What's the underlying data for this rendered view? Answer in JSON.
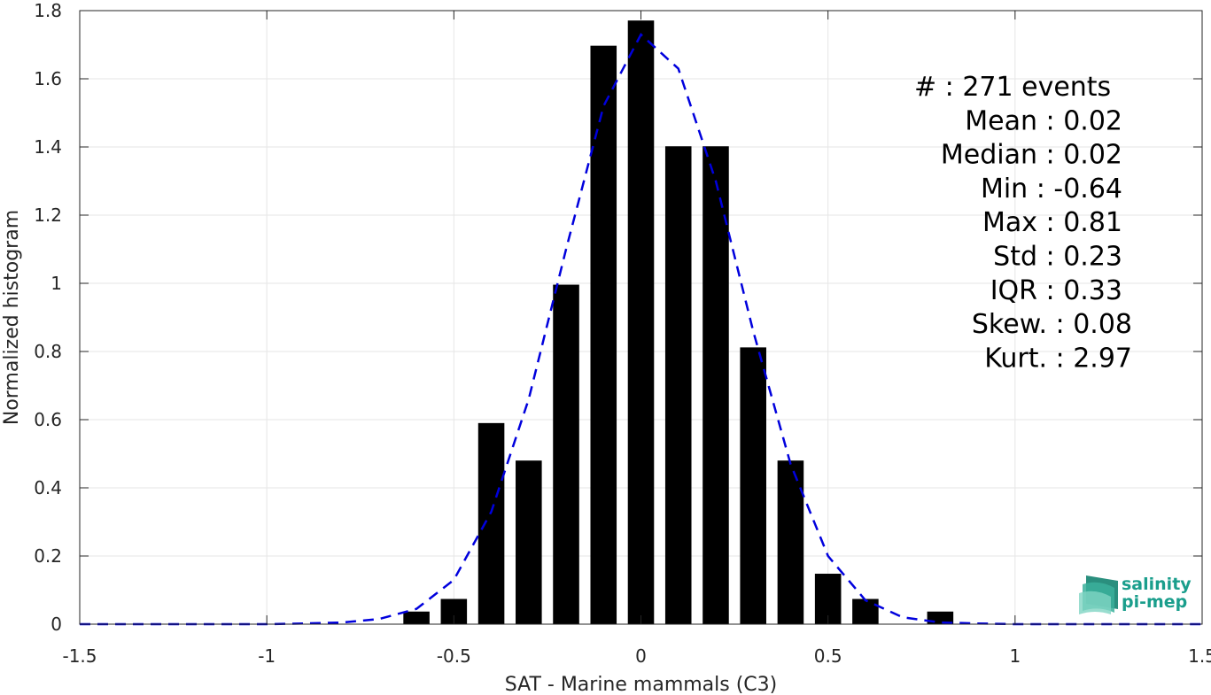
{
  "chart_data": {
    "type": "bar",
    "xlabel": "SAT - Marine mammals (C3)",
    "ylabel": "Normalized histogram",
    "xlim": [
      -1.5,
      1.5
    ],
    "ylim": [
      0,
      1.8
    ],
    "grid": true,
    "x_ticks": [
      "-1.5",
      "-1",
      "-0.5",
      "0",
      "0.5",
      "1",
      "1.5"
    ],
    "x_tick_values": [
      -1.5,
      -1,
      -0.5,
      0,
      0.5,
      1,
      1.5
    ],
    "y_ticks": [
      "0",
      "0.2",
      "0.4",
      "0.6",
      "0.8",
      "1",
      "1.2",
      "1.4",
      "1.6",
      "1.8"
    ],
    "y_tick_values": [
      0,
      0.2,
      0.4,
      0.6,
      0.8,
      1.0,
      1.2,
      1.4,
      1.6,
      1.8
    ],
    "bar_width": 0.07,
    "bars": {
      "color": "#000000",
      "x": [
        -0.6,
        -0.5,
        -0.4,
        -0.3,
        -0.2,
        -0.1,
        0.0,
        0.1,
        0.2,
        0.3,
        0.4,
        0.5,
        0.6,
        0.8
      ],
      "values": [
        0.037,
        0.074,
        0.59,
        0.48,
        0.996,
        1.697,
        1.771,
        1.402,
        1.402,
        0.812,
        0.48,
        0.148,
        0.074,
        0.037
      ]
    },
    "fit_curve": {
      "color": "#0000dd",
      "style": "dashed",
      "x": [
        -1.5,
        -1.4,
        -1.3,
        -1.2,
        -1.1,
        -1.0,
        -0.9,
        -0.8,
        -0.7,
        -0.6,
        -0.5,
        -0.4,
        -0.3,
        -0.2,
        -0.1,
        0.0,
        0.1,
        0.2,
        0.3,
        0.4,
        0.5,
        0.6,
        0.7,
        0.8,
        0.9,
        1.0,
        1.1,
        1.2,
        1.3,
        1.4,
        1.5
      ],
      "values": [
        0,
        0,
        0,
        0,
        0,
        0,
        0.002,
        0.005,
        0.015,
        0.045,
        0.13,
        0.33,
        0.66,
        1.1,
        1.52,
        1.73,
        1.63,
        1.3,
        0.86,
        0.47,
        0.2,
        0.07,
        0.02,
        0.005,
        0.002,
        0,
        0,
        0,
        0,
        0,
        0
      ]
    },
    "annotations": [
      {
        "text": "#  : 271 events",
        "anchor": "start"
      },
      {
        "text": "Mean : 0.02",
        "anchor": "end"
      },
      {
        "text": "Median : 0.02",
        "anchor": "end"
      },
      {
        "text": "Min : -0.64",
        "anchor": "end"
      },
      {
        "text": "Max : 0.81",
        "anchor": "end"
      },
      {
        "text": "Std : 0.23",
        "anchor": "end"
      },
      {
        "text": "IQR : 0.33",
        "anchor": "end"
      },
      {
        "text": "Skew. : 0.08",
        "anchor": "end"
      },
      {
        "text": "Kurt. : 2.97",
        "anchor": "end"
      }
    ]
  },
  "logo": {
    "line1": "salinity",
    "line2": "pi-mep",
    "color": "#1a9e8c"
  }
}
